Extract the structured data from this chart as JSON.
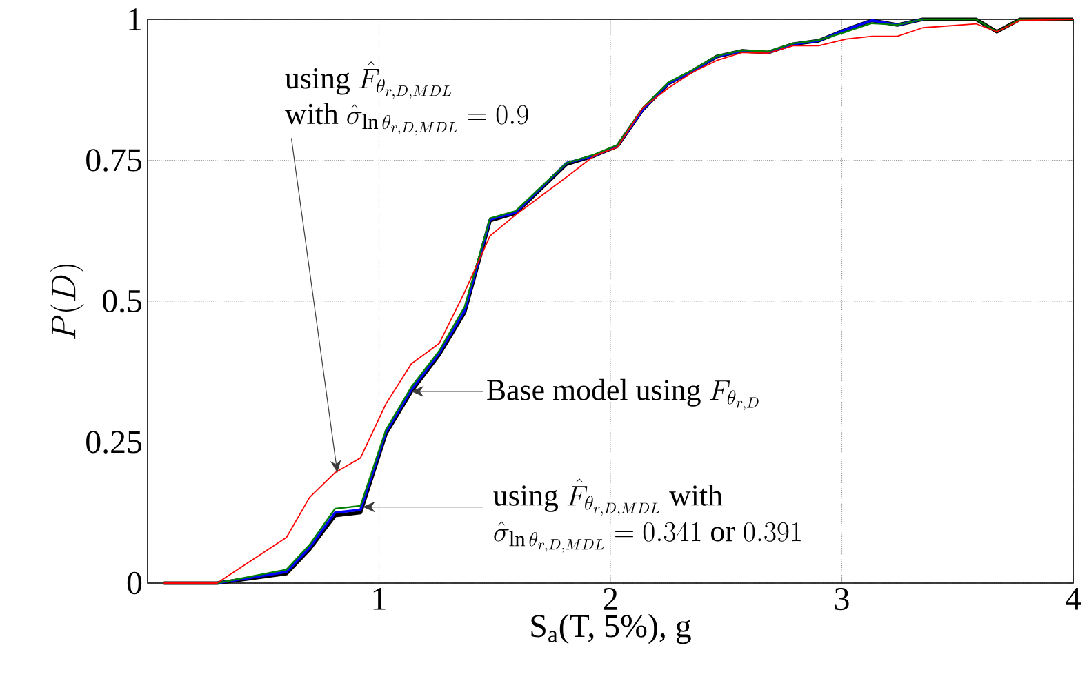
{
  "chart_data": {
    "type": "line",
    "xlabel": "S$_{a}$(T, 5%), g",
    "ylabel": "P(D)",
    "x": [
      0.07,
      0.3,
      0.6,
      0.7,
      0.81,
      0.92,
      1.03,
      1.14,
      1.26,
      1.37,
      1.48,
      1.59,
      1.81,
      1.93,
      2.03,
      2.14,
      2.25,
      2.35,
      2.46,
      2.57,
      2.68,
      2.79,
      2.9,
      3.02,
      3.13,
      3.24,
      3.35,
      3.58,
      3.67,
      3.77,
      4.0
    ],
    "series": [
      {
        "color": "#000000",
        "values": [
          0,
          0,
          0.017,
          0.06,
          0.12,
          0.125,
          0.265,
          0.34,
          0.405,
          0.48,
          0.643,
          0.656,
          0.743,
          0.758,
          0.775,
          0.84,
          0.886,
          0.907,
          0.934,
          0.944,
          0.941,
          0.956,
          0.962,
          0.982,
          0.998,
          0.99,
          1,
          1,
          0.978,
          1,
          1
        ]
      },
      {
        "color": "#0000ff",
        "values": [
          0,
          0,
          0.02,
          0.063,
          0.125,
          0.13,
          0.268,
          0.343,
          0.408,
          0.483,
          0.645,
          0.657,
          0.745,
          0.758,
          0.775,
          0.84,
          0.886,
          0.907,
          0.934,
          0.944,
          0.941,
          0.956,
          0.962,
          0.982,
          0.998,
          0.99,
          1,
          null,
          null,
          null,
          null
        ]
      },
      {
        "color": "#008000",
        "values": [
          0,
          0,
          0.024,
          0.068,
          0.132,
          0.137,
          0.272,
          0.348,
          0.412,
          0.49,
          0.647,
          0.66,
          0.745,
          0.76,
          0.777,
          0.843,
          0.888,
          0.909,
          0.935,
          0.945,
          0.943,
          0.957,
          0.963,
          0.978,
          0.993,
          0.99,
          1,
          1,
          0.978,
          1,
          1
        ]
      },
      {
        "color": "#ff0000",
        "values": [
          0,
          0,
          0.081,
          0.152,
          0.196,
          0.222,
          0.318,
          0.389,
          0.425,
          0.516,
          0.616,
          0.653,
          0.72,
          0.758,
          0.773,
          0.843,
          0.878,
          0.905,
          0.927,
          0.941,
          0.94,
          0.953,
          0.953,
          0.965,
          0.97,
          0.97,
          0.985,
          0.992,
          0.978,
          0.998,
          1.0
        ]
      }
    ],
    "xlim": [
      0,
      4
    ],
    "ylim": [
      0,
      1
    ],
    "xticks": [
      1,
      2,
      3,
      4
    ],
    "yticks": [
      0,
      0.25,
      0.5,
      0.75,
      1
    ],
    "grid": true,
    "annotations": [
      {
        "text": "\\begin{array}{l}\\mbox{using }\\hat{F}_{\\theta_{r,D,MDL}}\\\\ \\mbox{with }\\hat{\\sigma}_{\\ln\\theta_{r,D,MDL}}=0.9\\end{array}",
        "x": 0.82,
        "y": 0.196
      },
      {
        "text": "\\mbox{Base model using }F_{\\theta_{r,D}}",
        "x": 1.14,
        "y": 0.34
      },
      {
        "text": "\\begin{array}{l}\\mbox{using }\\hat{F}_{\\theta_{r,D,MDL}}\\mbox{ with}\\\\ \\hat{\\sigma}_{\\ln\\theta_{r,D,MDL}}=0.341\\mbox{ or }0.391\\end{array}",
        "x": 0.93,
        "y": 0.135
      }
    ]
  }
}
